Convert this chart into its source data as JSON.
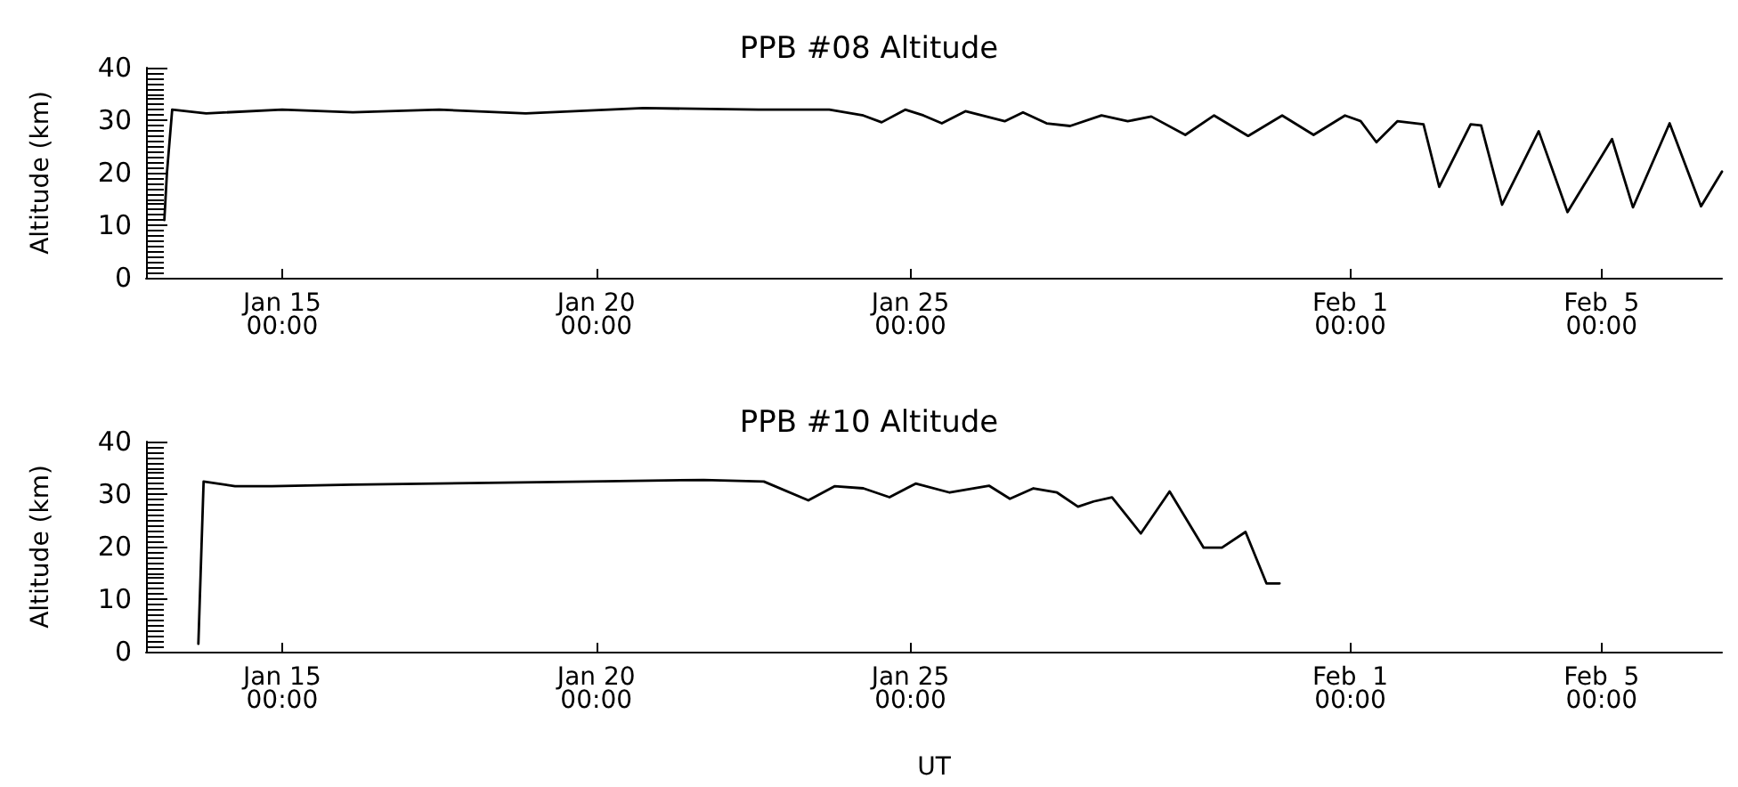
{
  "chart_data": [
    {
      "type": "line",
      "title": "PPB #08 Altitude",
      "ylabel": "Altitude (km)",
      "xlim": [
        "--01-12T20:00",
        "--02-06T22:00"
      ],
      "ylim": [
        0,
        40
      ],
      "yticks": [
        0,
        10,
        20,
        30,
        40
      ],
      "xticks": [
        {
          "value": "--01-15T00:00",
          "label": "Jan 15\n00:00"
        },
        {
          "value": "--01-20T00:00",
          "label": "Jan 20\n00:00"
        },
        {
          "value": "--01-25T00:00",
          "label": "Jan 25\n00:00"
        },
        {
          "value": "--02-01T00:00",
          "label": "Feb  1\n00:00"
        },
        {
          "value": "--02-05T00:00",
          "label": "Feb  5\n00:00"
        }
      ],
      "grid": false,
      "marker": "none",
      "line_style": "solid",
      "series": [
        {
          "color": "#000000",
          "x": [
            "--01-13T03:00",
            "--01-13T04:00",
            "--01-13T06:00",
            "--01-13T19:00",
            "--01-15T00:00",
            "--01-16T03:00",
            "--01-17T12:00",
            "--01-18T21:00",
            "--01-20T18:00",
            "--01-22T14:00",
            "--01-23T17:00",
            "--01-24T06:00",
            "--01-24T13:00",
            "--01-24T22:00",
            "--01-25T05:00",
            "--01-25T12:00",
            "--01-25T21:00",
            "--01-26T12:00",
            "--01-26T19:00",
            "--01-27T04:00",
            "--01-27T13:00",
            "--01-28T01:00",
            "--01-28T11:00",
            "--01-28T20:00",
            "--01-29T09:00",
            "--01-29T20:00",
            "--01-30T09:00",
            "--01-30T22:00",
            "--01-31T10:00",
            "--01-31T22:00",
            "--02-01T04:00",
            "--02-01T10:00",
            "--02-01T18:00",
            "--02-02T04:00",
            "--02-02T10:00",
            "--02-02T22:00",
            "--02-03T02:00",
            "--02-03T10:00",
            "--02-04T00:00",
            "--02-04T11:00",
            "--02-05T04:00",
            "--02-05T12:00",
            "--02-06T02:00",
            "--02-06T14:00",
            "--02-06T22:00"
          ],
          "values": [
            11,
            20,
            32,
            31.3,
            32,
            31.5,
            32,
            31.3,
            32.3,
            32,
            32,
            30.9,
            29.6,
            32,
            30.9,
            29.4,
            31.7,
            29.8,
            31.5,
            29.4,
            28.9,
            30.9,
            29.8,
            30.7,
            27.2,
            30.9,
            27,
            30.9,
            27.2,
            30.9,
            29.8,
            25.8,
            29.8,
            29.2,
            17.3,
            29.2,
            29,
            13.9,
            27.9,
            12.5,
            26.4,
            13.4,
            29.4,
            13.6,
            20.2
          ]
        }
      ]
    },
    {
      "type": "line",
      "title": "PPB #10 Altitude",
      "ylabel": "Altitude (km)",
      "xlabel": "UT",
      "xlim": [
        "--01-12T20:00",
        "--02-06T22:00"
      ],
      "ylim": [
        0,
        40
      ],
      "yticks": [
        0,
        10,
        20,
        30,
        40
      ],
      "xticks": [
        {
          "value": "--01-15T00:00",
          "label": "Jan 15\n00:00"
        },
        {
          "value": "--01-20T00:00",
          "label": "Jan 20\n00:00"
        },
        {
          "value": "--01-25T00:00",
          "label": "Jan 25\n00:00"
        },
        {
          "value": "--02-01T00:00",
          "label": "Feb  1\n00:00"
        },
        {
          "value": "--02-05T00:00",
          "label": "Feb  5\n00:00"
        }
      ],
      "grid": false,
      "marker": "none",
      "line_style": "solid",
      "series": [
        {
          "color": "#000000",
          "x": [
            "--01-13T16:00",
            "--01-13T18:00",
            "--01-14T06:00",
            "--01-14T20:00",
            "--01-16T03:00",
            "--01-18T00:00",
            "--01-19T21:00",
            "--01-21T17:00",
            "--01-22T16:00",
            "--01-23T09:00",
            "--01-23T19:00",
            "--01-24T06:00",
            "--01-24T16:00",
            "--01-25T02:00",
            "--01-25T15:00",
            "--01-26T06:00",
            "--01-26T14:00",
            "--01-26T23:00",
            "--01-27T08:00",
            "--01-27T16:00",
            "--01-27T22:00",
            "--01-28T05:00",
            "--01-28T16:00",
            "--01-29T03:00",
            "--01-29T16:00",
            "--01-29T23:00",
            "--01-30T08:00",
            "--01-30T16:00",
            "--01-30T21:00"
          ],
          "values": [
            1.5,
            32.4,
            31.5,
            31.5,
            31.8,
            32.1,
            32.4,
            32.7,
            32.4,
            28.8,
            31.5,
            31.1,
            29.4,
            32,
            30.3,
            31.6,
            29.1,
            31.1,
            30.3,
            27.6,
            28.6,
            29.4,
            22.5,
            30.5,
            19.8,
            19.8,
            22.8,
            13,
            13
          ]
        }
      ]
    }
  ]
}
